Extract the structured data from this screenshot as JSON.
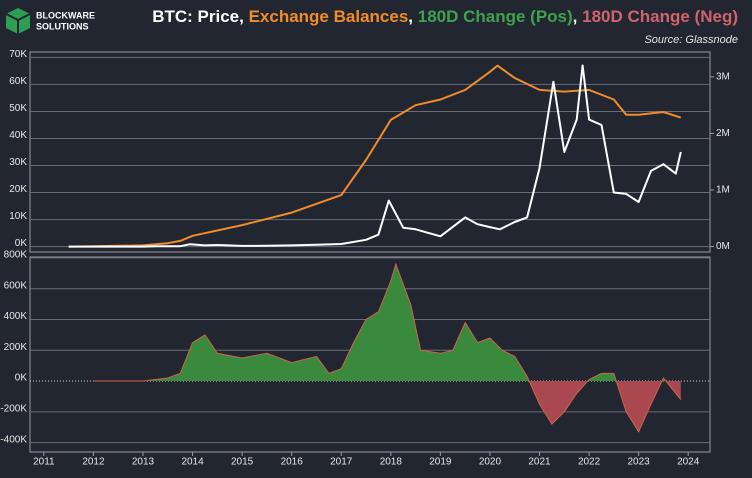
{
  "logo": {
    "line1": "BLOCKWARE",
    "line2": "SOLUTIONS"
  },
  "chart_data": [
    {
      "type": "line",
      "title_parts": [
        {
          "text": "BTC: Price",
          "color": "#ffffff"
        },
        {
          "text": ", ",
          "color": "#ffffff"
        },
        {
          "text": "Exchange Balances",
          "color": "#f28c28"
        },
        {
          "text": ", ",
          "color": "#ffffff"
        },
        {
          "text": "180D Change (Pos)",
          "color": "#3fa34d"
        },
        {
          "text": ", ",
          "color": "#ffffff"
        },
        {
          "text": "180D Change (Neg)",
          "color": "#d0646a"
        }
      ],
      "source": "Source: Glassnode",
      "xlim": [
        2010.72,
        2024.44
      ],
      "ylim": [
        -2000,
        72000
      ],
      "yticks": [
        {
          "value": 0,
          "label": "0K"
        },
        {
          "value": 10000,
          "label": "10K"
        },
        {
          "value": 20000,
          "label": "20K"
        },
        {
          "value": 30000,
          "label": "30K"
        },
        {
          "value": 40000,
          "label": "40K"
        },
        {
          "value": 50000,
          "label": "50K"
        },
        {
          "value": 60000,
          "label": "60K"
        },
        {
          "value": 70000,
          "label": "70K"
        }
      ],
      "y2lim": [
        -96000,
        3440000
      ],
      "y2ticks": [
        {
          "value": 0,
          "label": "0M"
        },
        {
          "value": 1000000,
          "label": "1M"
        },
        {
          "value": 2000000,
          "label": "2M"
        },
        {
          "value": 3000000,
          "label": "3M"
        }
      ],
      "grid": true,
      "series": [
        {
          "color": "#f28c28",
          "axis": "y2",
          "x": [
            2011.5,
            2012,
            2013,
            2013.5,
            2013.75,
            2014,
            2015,
            2016,
            2017,
            2017.5,
            2018,
            2018.5,
            2019,
            2019.5,
            2020,
            2020.15,
            2020.5,
            2021,
            2021.5,
            2022,
            2022.5,
            2022.75,
            2023,
            2023.5,
            2023.85
          ],
          "values": [
            0,
            5000,
            20000,
            60000,
            100000,
            190000,
            380000,
            600000,
            910000,
            1530000,
            2240000,
            2500000,
            2600000,
            2770000,
            3090000,
            3200000,
            2980000,
            2770000,
            2740000,
            2770000,
            2600000,
            2330000,
            2330000,
            2380000,
            2280000
          ]
        },
        {
          "color": "#ffffff",
          "axis": "y",
          "x": [
            2011.5,
            2012,
            2012.5,
            2013,
            2013.25,
            2013.75,
            2013.95,
            2014.25,
            2014.5,
            2015,
            2015.5,
            2016,
            2016.5,
            2017,
            2017.5,
            2017.75,
            2017.96,
            2018.25,
            2018.5,
            2019,
            2019.5,
            2019.75,
            2020,
            2020.2,
            2020.5,
            2020.75,
            2021,
            2021.28,
            2021.5,
            2021.75,
            2021.87,
            2022,
            2022.25,
            2022.5,
            2022.75,
            2023,
            2023.25,
            2023.5,
            2023.75,
            2023.85
          ],
          "values": [
            15,
            5,
            7,
            13,
            100,
            130,
            900,
            450,
            600,
            250,
            280,
            430,
            650,
            970,
            2500,
            4400,
            17000,
            7000,
            6400,
            3800,
            10800,
            8300,
            7200,
            6400,
            9100,
            10800,
            29000,
            61000,
            35000,
            47000,
            67000,
            47000,
            45000,
            20000,
            19500,
            16500,
            28000,
            30500,
            27000,
            35000
          ]
        }
      ]
    },
    {
      "type": "area",
      "xlim": [
        2010.72,
        2024.44
      ],
      "xticks": [
        2011,
        2012,
        2013,
        2014,
        2015,
        2016,
        2017,
        2018,
        2019,
        2020,
        2021,
        2022,
        2023,
        2024
      ],
      "ylim": [
        -461000,
        806000
      ],
      "yticks": [
        {
          "value": -400000,
          "label": "-400K"
        },
        {
          "value": -200000,
          "label": "-200K"
        },
        {
          "value": 0,
          "label": "0K"
        },
        {
          "value": 200000,
          "label": "200K"
        },
        {
          "value": 400000,
          "label": "400K"
        },
        {
          "value": 600000,
          "label": "600K"
        },
        {
          "value": 800000,
          "label": "800K"
        }
      ],
      "grid": true,
      "pos_color": "#3a8a3e",
      "neg_color": "#a9494f",
      "line_color": "#d0644a",
      "series": [
        {
          "x": [
            2012,
            2013,
            2013.5,
            2013.75,
            2014,
            2014.25,
            2014.5,
            2015,
            2015.5,
            2016,
            2016.5,
            2016.75,
            2017,
            2017.25,
            2017.5,
            2017.75,
            2018,
            2018.1,
            2018.4,
            2018.6,
            2019,
            2019.25,
            2019.5,
            2019.75,
            2020,
            2020.25,
            2020.5,
            2020.75,
            2021,
            2021.25,
            2021.5,
            2021.75,
            2022,
            2022.25,
            2022.5,
            2022.75,
            2023,
            2023.25,
            2023.5,
            2023.85
          ],
          "values": [
            0,
            0,
            20000,
            50000,
            250000,
            300000,
            180000,
            150000,
            180000,
            120000,
            160000,
            50000,
            80000,
            250000,
            400000,
            450000,
            650000,
            760000,
            500000,
            200000,
            180000,
            200000,
            380000,
            250000,
            280000,
            200000,
            160000,
            30000,
            -150000,
            -280000,
            -200000,
            -80000,
            10000,
            50000,
            50000,
            -200000,
            -330000,
            -150000,
            20000,
            -120000
          ]
        }
      ]
    }
  ]
}
